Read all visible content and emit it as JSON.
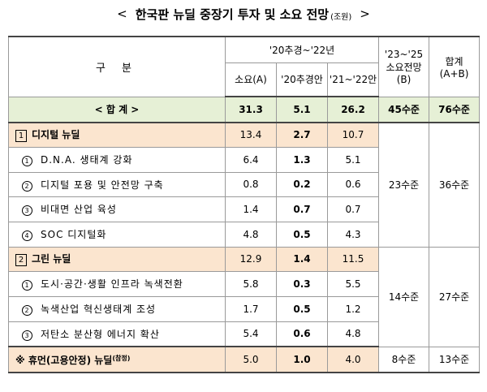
{
  "title": {
    "open": "<",
    "text": "한국판 뉴딜 중장기 투자 및 소요 전망",
    "unit": "(조원)",
    "close": ">"
  },
  "headers": {
    "category": "구 분",
    "period_group": "'20추경~'22년",
    "demand": "소요(A)",
    "supp20": "'20추경안",
    "y2122": "'21~'22안",
    "outlook": "'23~'25 소요전망 (B)",
    "total": "합계 (A+B)"
  },
  "total_row": {
    "label": "< 합 계 >",
    "demand": "31.3",
    "supp20": "5.1",
    "y2122": "26.2",
    "outlook": "45수준",
    "total": "76수준"
  },
  "digital": {
    "num": "1",
    "label": "디지털 뉴딜",
    "demand": "13.4",
    "supp20": "2.7",
    "y2122": "10.7",
    "outlook": "23수준",
    "total": "36수준",
    "items": [
      {
        "num": "1",
        "label": "D.N.A. 생태계 강화",
        "demand": "6.4",
        "supp20": "1.3",
        "y2122": "5.1"
      },
      {
        "num": "2",
        "label": "디지털 포용 및 안전망 구축",
        "demand": "0.8",
        "supp20": "0.2",
        "y2122": "0.6"
      },
      {
        "num": "3",
        "label": "비대면 산업 육성",
        "demand": "1.4",
        "supp20": "0.7",
        "y2122": "0.7"
      },
      {
        "num": "4",
        "label": "SOC 디지털화",
        "demand": "4.8",
        "supp20": "0.5",
        "y2122": "4.3"
      }
    ]
  },
  "green": {
    "num": "2",
    "label": "그린 뉴딜",
    "demand": "12.9",
    "supp20": "1.4",
    "y2122": "11.5",
    "outlook": "14수준",
    "total": "27수준",
    "items": [
      {
        "num": "1",
        "label": "도시·공간·생활 인프라 녹색전환",
        "demand": "5.8",
        "supp20": "0.3",
        "y2122": "5.5"
      },
      {
        "num": "2",
        "label": "녹색산업 혁신생태계 조성",
        "demand": "1.7",
        "supp20": "0.5",
        "y2122": "1.2"
      },
      {
        "num": "3",
        "label": "저탄소 분산형 에너지 확산",
        "demand": "5.4",
        "supp20": "0.6",
        "y2122": "4.8"
      }
    ]
  },
  "human": {
    "label": "※ 휴먼(고용안정) 뉴딜",
    "note": "(참정)",
    "demand": "5.0",
    "supp20": "1.0",
    "y2122": "4.0",
    "outlook": "8수준",
    "total": "13수준"
  }
}
